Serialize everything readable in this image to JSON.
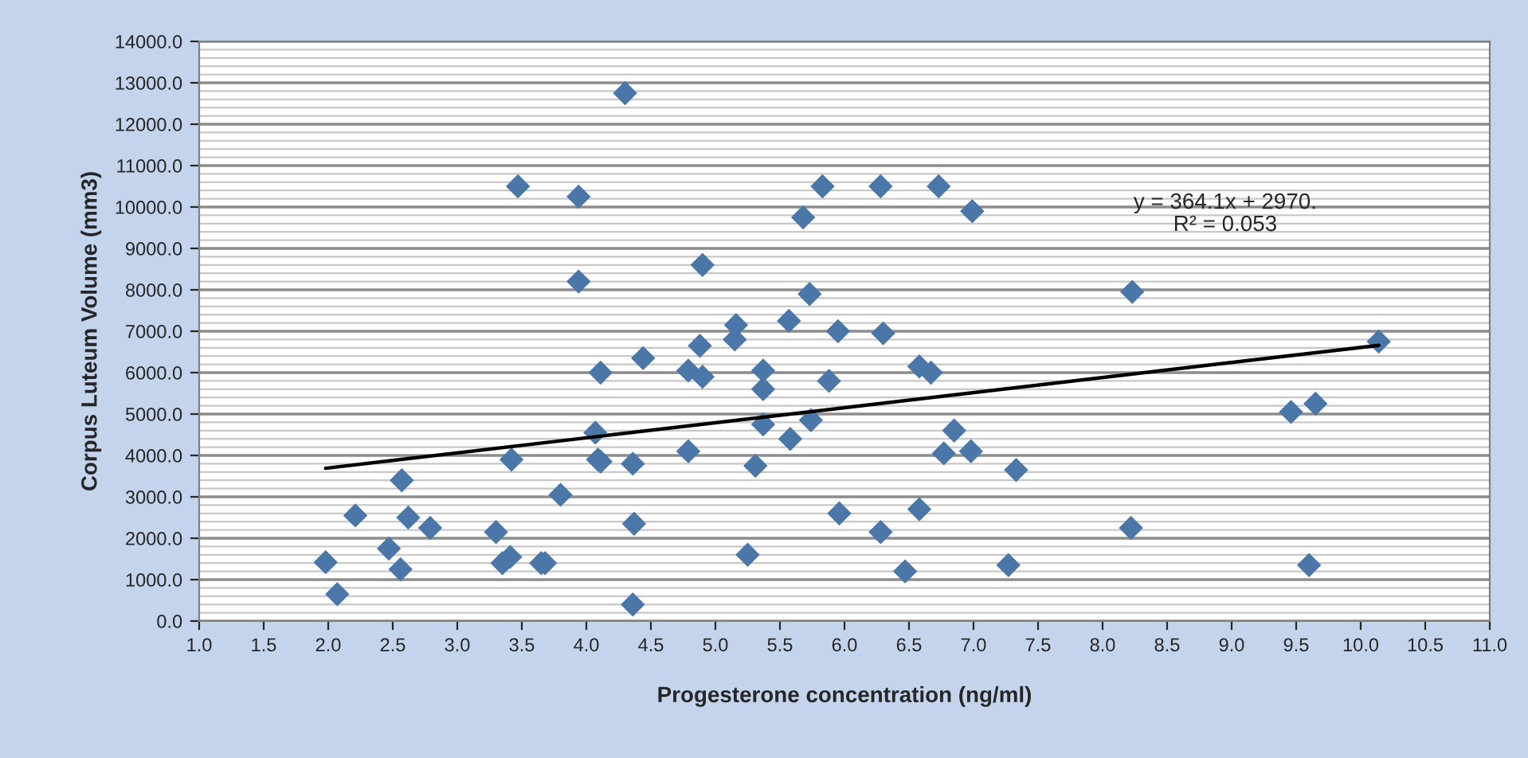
{
  "chart_data": {
    "type": "scatter",
    "xlabel": "Progesterone concentration (ng/ml)",
    "ylabel": "Corpus Luteum Volume (mm3)",
    "annotations": [
      "y = 364.1x + 2970.\nR² = 0.053"
    ],
    "xlim": [
      1.0,
      11.0
    ],
    "xticks": [
      {
        "value": 1.0,
        "label": "1.0"
      },
      {
        "value": 1.5,
        "label": "1.5"
      },
      {
        "value": 2.0,
        "label": "2.0"
      },
      {
        "value": 2.5,
        "label": "2.5"
      },
      {
        "value": 3.0,
        "label": "3.0"
      },
      {
        "value": 3.5,
        "label": "3.5"
      },
      {
        "value": 4.0,
        "label": "4.0"
      },
      {
        "value": 4.5,
        "label": "4.5"
      },
      {
        "value": 5.0,
        "label": "5.0"
      },
      {
        "value": 5.5,
        "label": "5.5"
      },
      {
        "value": 6.0,
        "label": "6.0"
      },
      {
        "value": 6.5,
        "label": "6.5"
      },
      {
        "value": 7.0,
        "label": "7.0"
      },
      {
        "value": 7.5,
        "label": "7.5"
      },
      {
        "value": 8.0,
        "label": "8.0"
      },
      {
        "value": 8.5,
        "label": "8.5"
      },
      {
        "value": 9.0,
        "label": "9.0"
      },
      {
        "value": 9.5,
        "label": "9.5"
      },
      {
        "value": 10.0,
        "label": "10.0"
      },
      {
        "value": 10.5,
        "label": "10.5"
      },
      {
        "value": 11.0,
        "label": "11.0"
      }
    ],
    "ylim": [
      0,
      14000
    ],
    "yticks": [
      {
        "value": 0,
        "label": "0.0"
      },
      {
        "value": 1000,
        "label": "1000.0"
      },
      {
        "value": 2000,
        "label": "2000.0"
      },
      {
        "value": 3000,
        "label": "3000.0"
      },
      {
        "value": 4000,
        "label": "4000.0"
      },
      {
        "value": 5000,
        "label": "5000.0"
      },
      {
        "value": 6000,
        "label": "6000.0"
      },
      {
        "value": 7000,
        "label": "7000.0"
      },
      {
        "value": 8000,
        "label": "8000.0"
      },
      {
        "value": 9000,
        "label": "9000.0"
      },
      {
        "value": 10000,
        "label": "10000.0"
      },
      {
        "value": 11000,
        "label": "11000.0"
      },
      {
        "value": 12000,
        "label": "12000.0"
      },
      {
        "value": 13000,
        "label": "13000.0"
      },
      {
        "value": 14000,
        "label": "14000.0"
      }
    ],
    "grid": "y",
    "legend": false,
    "series": [
      {
        "marker": "diamond",
        "color": "#4a76a8",
        "x": [
          1.98,
          2.07,
          2.21,
          2.47,
          2.57,
          2.56,
          2.62,
          2.79,
          3.3,
          3.35,
          3.41,
          3.42,
          3.47,
          3.65,
          3.68,
          3.8,
          3.94,
          3.94,
          4.07,
          4.09,
          4.11,
          4.11,
          4.3,
          4.36,
          4.37,
          4.36,
          4.44,
          4.79,
          4.9,
          4.88,
          4.9,
          4.79,
          5.25,
          5.15,
          5.16,
          5.37,
          5.37,
          5.37,
          5.31,
          5.57,
          5.58,
          5.68,
          5.73,
          5.74,
          5.83,
          5.88,
          5.95,
          5.96,
          6.28,
          6.3,
          6.28,
          6.47,
          6.58,
          6.67,
          6.58,
          6.73,
          6.85,
          6.77,
          6.98,
          6.99,
          7.33,
          7.27,
          8.23,
          8.22,
          9.46,
          9.65,
          9.6,
          10.14
        ],
        "values": [
          1420,
          650,
          2550,
          1750,
          3400,
          1250,
          2500,
          2250,
          2150,
          1400,
          1550,
          3900,
          10500,
          1400,
          1400,
          3050,
          10250,
          8200,
          4550,
          3900,
          3850,
          6000,
          12750,
          3800,
          2350,
          400,
          6350,
          6050,
          8600,
          6650,
          5900,
          4100,
          1600,
          6800,
          7150,
          6050,
          5600,
          4750,
          3750,
          7250,
          4400,
          9750,
          7900,
          4850,
          10500,
          5800,
          7000,
          2600,
          10500,
          6950,
          2150,
          1200,
          6150,
          6000,
          2700,
          10500,
          4600,
          4050,
          4100,
          9900,
          3650,
          1350,
          7950,
          2250,
          5050,
          5250,
          1350,
          6750
        ]
      },
      {
        "type": "line",
        "marker": "none",
        "line_style": "solid",
        "color": "#000000",
        "x": [
          1.98,
          10.14
        ],
        "values": [
          3690,
          6660
        ]
      }
    ]
  }
}
